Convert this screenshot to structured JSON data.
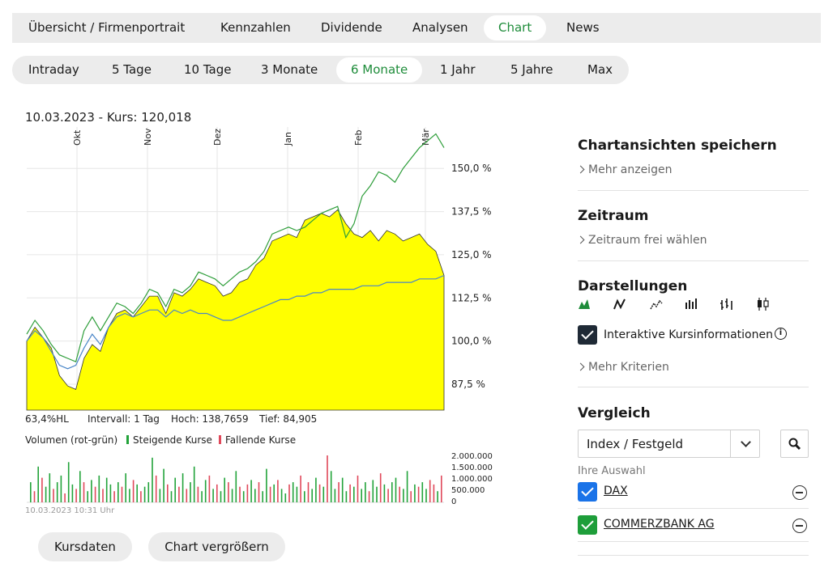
{
  "topnav": {
    "tabs": [
      "Übersicht / Firmenportrait",
      "Kennzahlen",
      "Dividende",
      "Analysen",
      "Chart",
      "News"
    ],
    "active": "Chart"
  },
  "ranges": {
    "items": [
      "Intraday",
      "5 Tage",
      "10 Tage",
      "3 Monate",
      "6 Monate",
      "1 Jahr",
      "5 Jahre",
      "Max"
    ],
    "active": "6 Monate"
  },
  "kurs_header": "10.03.2023  -  Kurs: 120,018",
  "info": {
    "hl": "63,4%HL",
    "intervall": "Intervall: 1 Tag",
    "hoch": "Hoch: 138,7659",
    "tief": "Tief:  84,905"
  },
  "volume_legend": {
    "title": "Volumen (rot-grün)",
    "up": "Steigende Kurse",
    "down": "Fallende Kurse"
  },
  "timestamp": "10.03.2023 10:31 Uhr",
  "buttons": {
    "kursdaten": "Kursdaten",
    "vergroessern": "Chart vergrößern"
  },
  "sidebar": {
    "save_title": "Chartansichten speichern",
    "save_link": "Mehr anzeigen",
    "zeitraum_title": "Zeitraum",
    "zeitraum_link": "Zeitraum frei wählen",
    "darstellungen_title": "Darstellungen",
    "interactive_label": "Interaktive Kursinformationen",
    "criteria_link": "Mehr Kriterien",
    "vergleich_title": "Vergleich",
    "select_value": "Index / Festgeld",
    "ihre_auswahl": "Ihre Auswahl",
    "comparisons": [
      {
        "name": "DAX",
        "color": "#1a73e8"
      },
      {
        "name": "COMMERZBANK AG",
        "color": "#1e9e3a"
      }
    ]
  },
  "colors": {
    "accent_green": "#1e8c3a",
    "area_fill": "#ffff00",
    "line_green": "#2e9e3a",
    "line_blue": "#4a86c8",
    "up": "#22a33a",
    "down": "#e0485a"
  },
  "chart_data": {
    "type": "area",
    "months": [
      "Okt",
      "Nov",
      "Dez",
      "Jan",
      "Feb",
      "Mär"
    ],
    "ytick_labels": [
      "150,0 %",
      "137,5 %",
      "125,0 %",
      "112,5 %",
      "100,0 %",
      "87,5 %"
    ],
    "yticks": [
      150,
      137.5,
      125,
      112.5,
      100,
      87.5
    ],
    "ylim": [
      80,
      162
    ],
    "series": [
      {
        "role": "main-area",
        "values": [
          100,
          104,
          101,
          98,
          90,
          87,
          86,
          95,
          99,
          97,
          104,
          108,
          109,
          107,
          110,
          113,
          113,
          108,
          114,
          113,
          115,
          118,
          117,
          116,
          113,
          114,
          117,
          118,
          122,
          124,
          129,
          130,
          131,
          130,
          135,
          136,
          137,
          136,
          138,
          134,
          131,
          130,
          132,
          129,
          132,
          131,
          129,
          130,
          131,
          128,
          126,
          119
        ]
      },
      {
        "role": "comparison-green",
        "values": [
          102,
          106,
          103,
          99,
          96,
          95,
          94,
          103,
          107,
          103,
          107,
          111,
          110,
          108,
          111,
          115,
          114,
          110,
          115,
          114,
          116,
          120,
          119,
          118,
          116,
          118,
          120,
          121,
          123,
          126,
          131,
          132,
          133,
          132,
          133,
          135,
          137,
          138,
          139,
          130,
          134,
          142,
          145,
          149,
          148,
          146,
          150,
          153,
          156,
          158,
          160,
          156
        ]
      },
      {
        "role": "comparison-blue",
        "values": [
          100,
          103,
          101,
          97,
          93,
          92,
          93,
          98,
          102,
          99,
          104,
          107,
          108,
          107,
          108,
          109,
          109,
          107,
          109,
          108,
          109,
          108,
          108,
          107,
          106,
          106,
          107,
          108,
          109,
          110,
          111,
          112,
          112,
          113,
          113,
          114,
          114,
          115,
          115,
          115,
          115,
          116,
          116,
          116,
          117,
          117,
          117,
          117,
          118,
          118,
          118,
          119
        ]
      }
    ],
    "volume_ticks": [
      "2.000.000",
      "1.500.000",
      "1.000.000",
      "500.000",
      "0"
    ],
    "volume": [
      0.9,
      0.5,
      1.6,
      1.1,
      0.7,
      1.3,
      0.6,
      0.9,
      1.2,
      0.4,
      1.8,
      0.8,
      0.6,
      1.4,
      0.9,
      0.5,
      1.0,
      0.7,
      1.2,
      0.6,
      1.1,
      0.8,
      0.5,
      0.9,
      0.7,
      1.3,
      0.6,
      1.0,
      0.8,
      0.5,
      0.7,
      0.9,
      2.0,
      1.2,
      0.6,
      1.5,
      0.8,
      0.5,
      1.1,
      0.7,
      1.3,
      0.6,
      0.9,
      1.6,
      0.7,
      0.5,
      1.0,
      1.2,
      0.6,
      0.8,
      0.5,
      1.1,
      0.9,
      0.6,
      1.4,
      0.7,
      0.5,
      0.8,
      1.0,
      0.6,
      0.9,
      0.5,
      1.5,
      0.7,
      0.8,
      1.0,
      0.6,
      0.4,
      0.8,
      0.9,
      0.7,
      1.2,
      0.5,
      0.9,
      0.6,
      1.1,
      0.8,
      0.7,
      2.1,
      1.4,
      0.6,
      0.9,
      1.1,
      0.5,
      0.8,
      0.7,
      1.2,
      0.6,
      0.9,
      0.5,
      1.0,
      0.7,
      1.3,
      0.8,
      0.6,
      0.9,
      1.1,
      0.7,
      0.6,
      1.4,
      0.5,
      0.8,
      0.7,
      0.9,
      0.6,
      1.0,
      0.8,
      0.5,
      1.2
    ],
    "volume_up": [
      1,
      0,
      1,
      0,
      1,
      1,
      0,
      1,
      1,
      0,
      1,
      1,
      0,
      1,
      0,
      1,
      1,
      0,
      1,
      0,
      1,
      1,
      0,
      1,
      0,
      1,
      1,
      0,
      1,
      0,
      1,
      1,
      1,
      0,
      1,
      1,
      0,
      1,
      1,
      0,
      1,
      0,
      1,
      1,
      0,
      1,
      1,
      0,
      1,
      0,
      1,
      1,
      0,
      1,
      1,
      0,
      1,
      0,
      1,
      1,
      0,
      1,
      1,
      0,
      1,
      0,
      1,
      1,
      0,
      1,
      1,
      0,
      1,
      0,
      1,
      1,
      0,
      1,
      0,
      1,
      1,
      0,
      1,
      1,
      0,
      1,
      0,
      1,
      1,
      0,
      1,
      1,
      0,
      1,
      0,
      1,
      1,
      0,
      1,
      1,
      0,
      1,
      0,
      1,
      1,
      0,
      0,
      1,
      0
    ]
  }
}
